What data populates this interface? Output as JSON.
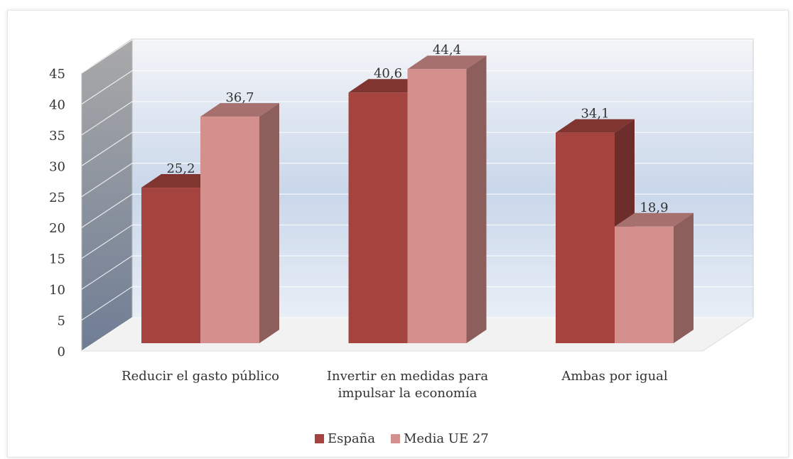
{
  "chart_data": {
    "type": "bar3d",
    "categories": [
      "Reducir el gasto público",
      "Invertir en medidas para impulsar la economía",
      "Ambas por igual"
    ],
    "series": [
      {
        "name": "España",
        "color": "#a5443f",
        "values": [
          25.2,
          40.6,
          34.1
        ],
        "value_labels": [
          "25,2",
          "40,6",
          "34,1"
        ]
      },
      {
        "name": "Media UE 27",
        "color": "#d4908d",
        "values": [
          36.7,
          44.4,
          18.9
        ],
        "value_labels": [
          "36,7",
          "44,4",
          "18,9"
        ]
      }
    ],
    "ylim": [
      0,
      45
    ],
    "yticks": [
      0,
      5,
      10,
      15,
      20,
      25,
      30,
      35,
      40,
      45
    ],
    "grid": true,
    "legend": "bottom"
  }
}
